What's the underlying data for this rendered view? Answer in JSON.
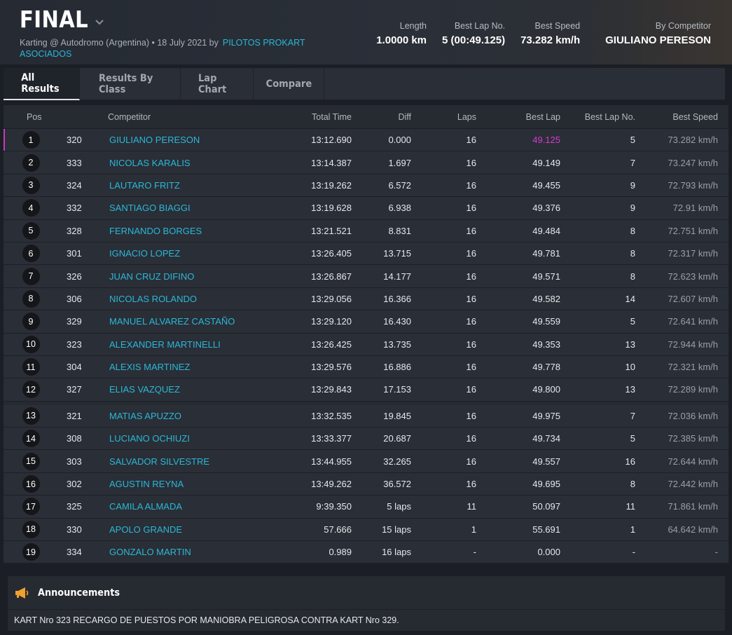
{
  "event": {
    "title": "FINAL",
    "subtitle": "Karting @ Autodromo (Argentina) • 18 July 2021 by",
    "organizer": "PILOTOS PROKART ASOCIADOS"
  },
  "stats": [
    {
      "label": "Length",
      "value": "1.0000 km"
    },
    {
      "label": "Best Lap No.",
      "value": "5 (00:49.125)"
    },
    {
      "label": "Best Speed",
      "value": "73.282 km/h"
    },
    {
      "label": "By Competitor",
      "value": "GIULIANO PERESON"
    }
  ],
  "tabs": [
    {
      "label": "All Results",
      "active": true
    },
    {
      "label": "Results By Class",
      "active": false
    },
    {
      "label": "Lap Chart",
      "active": false
    },
    {
      "label": "Compare",
      "active": false
    }
  ],
  "columns": {
    "pos": "Pos",
    "competitor": "Competitor",
    "total_time": "Total Time",
    "diff": "Diff",
    "laps": "Laps",
    "best_lap": "Best Lap",
    "best_lap_no": "Best Lap No.",
    "best_speed": "Best Speed"
  },
  "results": [
    {
      "pos": "1",
      "num": "320",
      "name": "GIULIANO PERESON",
      "time": "13:12.690",
      "diff": "0.000",
      "laps": "16",
      "best": "49.125",
      "bestno": "5",
      "speed": "73.282 km/h"
    },
    {
      "pos": "2",
      "num": "333",
      "name": "NICOLAS KARALIS",
      "time": "13:14.387",
      "diff": "1.697",
      "laps": "16",
      "best": "49.149",
      "bestno": "7",
      "speed": "73.247 km/h"
    },
    {
      "pos": "3",
      "num": "324",
      "name": "LAUTARO FRITZ",
      "time": "13:19.262",
      "diff": "6.572",
      "laps": "16",
      "best": "49.455",
      "bestno": "9",
      "speed": "72.793 km/h"
    },
    {
      "pos": "4",
      "num": "332",
      "name": "SANTIAGO BIAGGI",
      "time": "13:19.628",
      "diff": "6.938",
      "laps": "16",
      "best": "49.376",
      "bestno": "9",
      "speed": "72.91 km/h"
    },
    {
      "pos": "5",
      "num": "328",
      "name": "FERNANDO BORGES",
      "time": "13:21.521",
      "diff": "8.831",
      "laps": "16",
      "best": "49.484",
      "bestno": "8",
      "speed": "72.751 km/h"
    },
    {
      "pos": "6",
      "num": "301",
      "name": "IGNACIO LOPEZ",
      "time": "13:26.405",
      "diff": "13.715",
      "laps": "16",
      "best": "49.781",
      "bestno": "8",
      "speed": "72.317 km/h"
    },
    {
      "pos": "7",
      "num": "326",
      "name": "JUAN CRUZ DIFINO",
      "time": "13:26.867",
      "diff": "14.177",
      "laps": "16",
      "best": "49.571",
      "bestno": "8",
      "speed": "72.623 km/h"
    },
    {
      "pos": "8",
      "num": "306",
      "name": "NICOLAS ROLANDO",
      "time": "13:29.056",
      "diff": "16.366",
      "laps": "16",
      "best": "49.582",
      "bestno": "14",
      "speed": "72.607 km/h"
    },
    {
      "pos": "9",
      "num": "329",
      "name": "MANUEL ALVAREZ CASTAÑO",
      "time": "13:29.120",
      "diff": "16.430",
      "laps": "16",
      "best": "49.559",
      "bestno": "5",
      "speed": "72.641 km/h"
    },
    {
      "pos": "10",
      "num": "323",
      "name": "ALEXANDER MARTINELLI",
      "time": "13:26.425",
      "diff": "13.735",
      "laps": "16",
      "best": "49.353",
      "bestno": "13",
      "speed": "72.944 km/h"
    },
    {
      "pos": "11",
      "num": "304",
      "name": "ALEXIS MARTINEZ",
      "time": "13:29.576",
      "diff": "16.886",
      "laps": "16",
      "best": "49.778",
      "bestno": "10",
      "speed": "72.321 km/h"
    },
    {
      "pos": "12",
      "num": "327",
      "name": "ELIAS VAZQUEZ",
      "time": "13:29.843",
      "diff": "17.153",
      "laps": "16",
      "best": "49.800",
      "bestno": "13",
      "speed": "72.289 km/h"
    },
    {
      "pos": "13",
      "num": "321",
      "name": "MATIAS APUZZO",
      "time": "13:32.535",
      "diff": "19.845",
      "laps": "16",
      "best": "49.975",
      "bestno": "7",
      "speed": "72.036 km/h"
    },
    {
      "pos": "14",
      "num": "308",
      "name": "LUCIANO OCHIUZI",
      "time": "13:33.377",
      "diff": "20.687",
      "laps": "16",
      "best": "49.734",
      "bestno": "5",
      "speed": "72.385 km/h"
    },
    {
      "pos": "15",
      "num": "303",
      "name": "SALVADOR SILVESTRE",
      "time": "13:44.955",
      "diff": "32.265",
      "laps": "16",
      "best": "49.557",
      "bestno": "16",
      "speed": "72.644 km/h"
    },
    {
      "pos": "16",
      "num": "302",
      "name": "AGUSTIN REYNA",
      "time": "13:49.262",
      "diff": "36.572",
      "laps": "16",
      "best": "49.695",
      "bestno": "8",
      "speed": "72.442 km/h"
    },
    {
      "pos": "17",
      "num": "325",
      "name": "CAMILA ALMADA",
      "time": "9:39.350",
      "diff": "5 laps",
      "laps": "11",
      "best": "50.097",
      "bestno": "11",
      "speed": "71.861 km/h"
    },
    {
      "pos": "18",
      "num": "330",
      "name": "APOLO GRANDE",
      "time": "57.666",
      "diff": "15 laps",
      "laps": "1",
      "best": "55.691",
      "bestno": "1",
      "speed": "64.642 km/h"
    },
    {
      "pos": "19",
      "num": "334",
      "name": "GONZALO MARTIN",
      "time": "0.989",
      "diff": "16 laps",
      "laps": "-",
      "best": "0.000",
      "bestno": "-",
      "speed": "-"
    }
  ],
  "announcements": {
    "title": "Announcements",
    "text": "KART Nro 323 RECARGO DE PUESTOS POR MANIOBRA PELIGROSA CONTRA KART Nro 329.",
    "icon": "megaphone-icon"
  },
  "colors": {
    "accent_link": "#2ab8d8",
    "fastest_lap": "#d63ad0",
    "megaphone": "#f0a030"
  }
}
